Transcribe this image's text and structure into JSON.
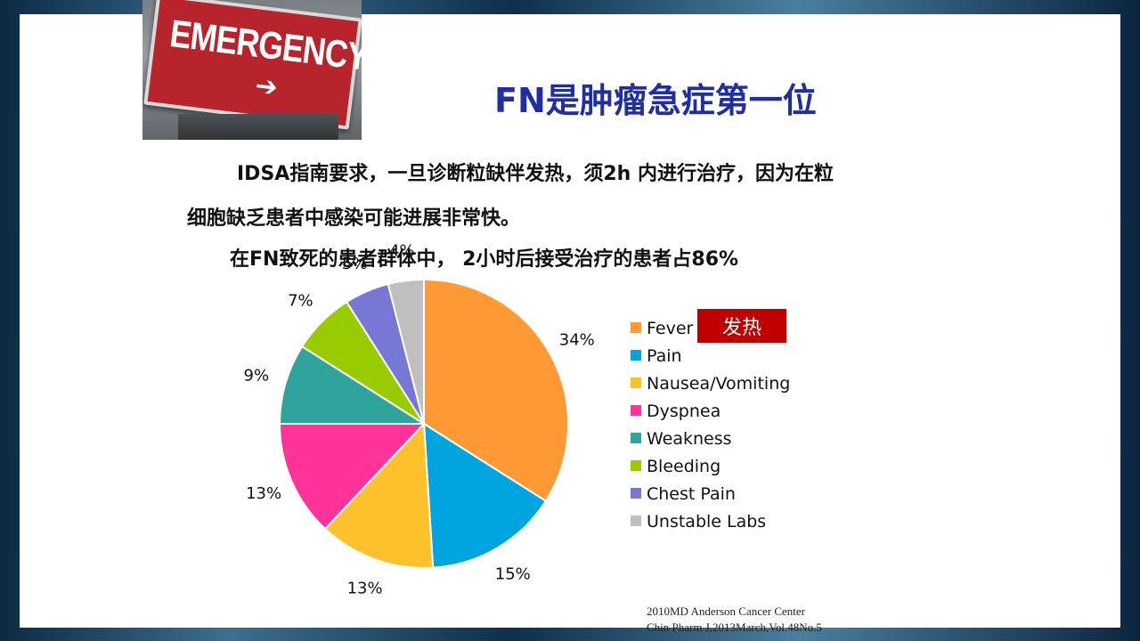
{
  "slide": {
    "title": "FN是肿瘤急症第一位",
    "paragraph1": "IDSA指南要求，一旦诊断粒缺伴发热，须2h 内进行治疗，因为在粒",
    "paragraph2": "细胞缺乏患者中感染可能进展非常快。",
    "paragraph3": "在FN致死的患者群体中， 2小时后接受治疗的患者占86%",
    "fever_badge": "发热",
    "citation_line1": "2010MD Anderson  Cancer  Center",
    "citation_line2": "Chin Pharm J,2013March,Vol.48No.5"
  },
  "photo": {
    "sign_text": "EMERGENCY",
    "arrow": "➔"
  },
  "chart_data": {
    "type": "pie",
    "categories": [
      "Fever",
      "Pain",
      "Nausea/Vomiting",
      "Dyspnea",
      "Weakness",
      "Bleeding",
      "Chest Pain",
      "Unstable Labs"
    ],
    "values": [
      34,
      15,
      13,
      13,
      9,
      7,
      5,
      4
    ],
    "data_labels": [
      "34%",
      "15%",
      "13%",
      "13%",
      "9%",
      "7%",
      "5%",
      "4%"
    ],
    "colors": [
      "#FF9933",
      "#00A5E0",
      "#FDC12C",
      "#FF3399",
      "#2EA49C",
      "#99CC00",
      "#7777D6",
      "#BFBFBF"
    ],
    "legend_position": "right",
    "start_angle": "12 o'clock, clockwise"
  }
}
